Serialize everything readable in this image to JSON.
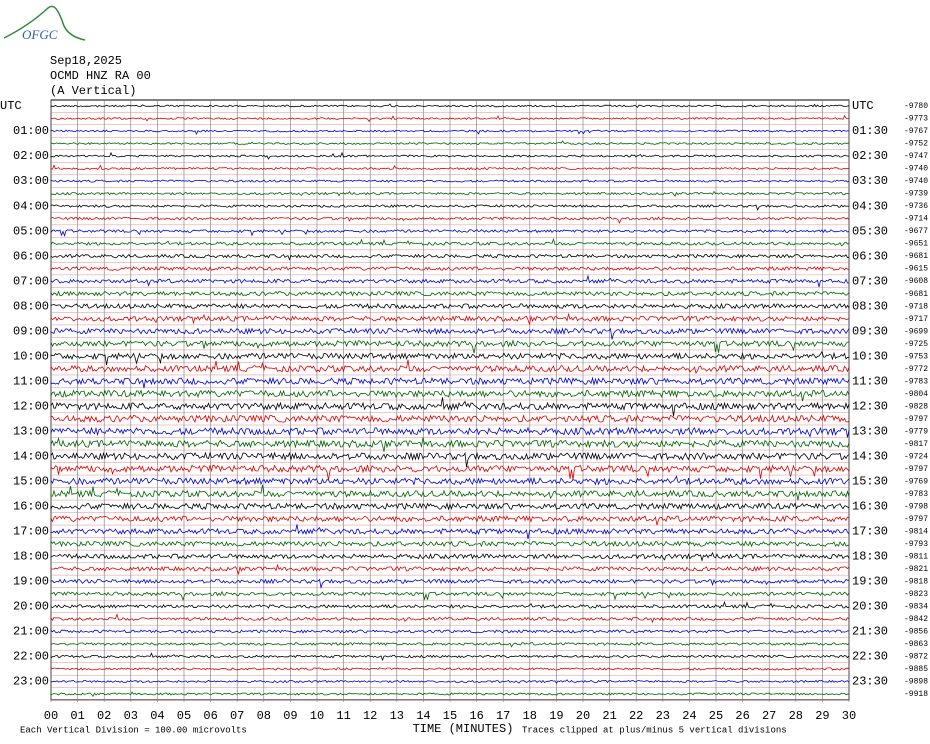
{
  "header": {
    "logo": "OFGC",
    "date": "Sep18,2025",
    "station": "OCMD HNZ RA 00",
    "component": "(A Vertical)"
  },
  "left_labels": [
    "UTC",
    "01:00",
    "02:00",
    "03:00",
    "04:00",
    "05:00",
    "06:00",
    "07:00",
    "08:00",
    "09:00",
    "10:00",
    "11:00",
    "12:00",
    "13:00",
    "14:00",
    "15:00",
    "16:00",
    "17:00",
    "18:00",
    "19:00",
    "20:00",
    "21:00",
    "22:00",
    "23:00"
  ],
  "right_labels": [
    "UTC",
    "01:30",
    "02:30",
    "03:30",
    "04:30",
    "05:30",
    "06:30",
    "07:30",
    "08:30",
    "09:30",
    "10:30",
    "11:30",
    "12:30",
    "13:30",
    "14:30",
    "15:30",
    "16:30",
    "17:30",
    "18:30",
    "19:30",
    "20:30",
    "21:30",
    "22:30",
    "23:30"
  ],
  "right_values": [
    -9780,
    -9773,
    -9767,
    -9752,
    -9747,
    -9740,
    -9740,
    -9739,
    -9736,
    -9714,
    -9677,
    -9651,
    -9681,
    -9615,
    -9608,
    -9681,
    -9718,
    -9717,
    -9699,
    -9725,
    -9753,
    -9772,
    -9783,
    -9804,
    -9828,
    -9797,
    -9779,
    -9817,
    -9724,
    -9797,
    -9769,
    -9783,
    -9798,
    -9797,
    -9814,
    -9793,
    -9811,
    -9821,
    -9818,
    -9823,
    -9834,
    -9842,
    -9856,
    -9863,
    -9872,
    -9885,
    -9898,
    -9918
  ],
  "x_ticks": [
    "00",
    "01",
    "02",
    "03",
    "04",
    "05",
    "06",
    "07",
    "08",
    "09",
    "10",
    "11",
    "12",
    "13",
    "14",
    "15",
    "16",
    "17",
    "18",
    "19",
    "20",
    "21",
    "22",
    "23",
    "24",
    "25",
    "26",
    "27",
    "28",
    "29",
    "30"
  ],
  "x_axis_title": "TIME (MINUTES)",
  "footer_left": "Each Vertical Division =  100.00 microvolts",
  "footer_right": "Traces clipped at plus/minus 5 vertical divisions"
}
